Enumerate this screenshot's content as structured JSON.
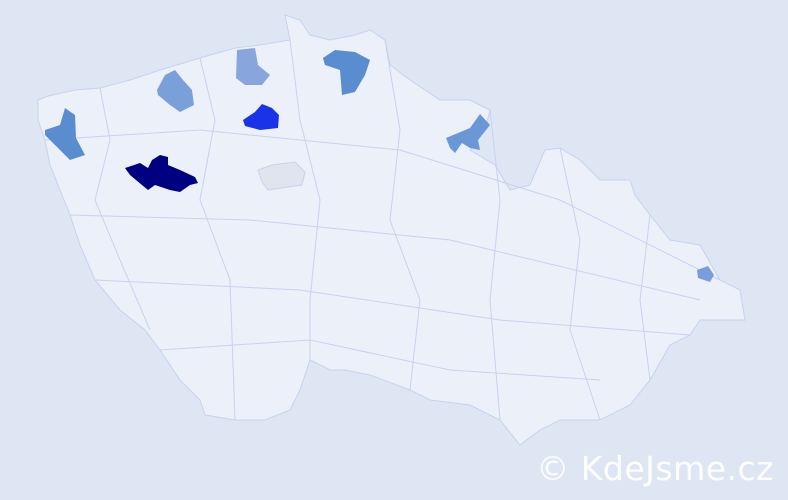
{
  "map": {
    "background_color": "#dde6f2",
    "land_color": "#ebf0f9",
    "border_color": "#c8d2ee",
    "highlighted_regions": [
      {
        "id": "region-west-dark",
        "color": "#000080"
      },
      {
        "id": "region-north-blue",
        "color": "#1a33e8"
      },
      {
        "id": "region-central-grey",
        "color": "#dfe4ee"
      },
      {
        "id": "region-far-west",
        "color": "#5a8cd0"
      },
      {
        "id": "region-northwest",
        "color": "#7aa0da"
      },
      {
        "id": "region-north-light",
        "color": "#88a6dc"
      },
      {
        "id": "region-north-east",
        "color": "#5a8cd0"
      },
      {
        "id": "region-northeast",
        "color": "#6a98d6"
      },
      {
        "id": "region-east-small",
        "color": "#7a9edc"
      }
    ]
  },
  "watermark": {
    "text": "© KdeJsme.cz"
  }
}
